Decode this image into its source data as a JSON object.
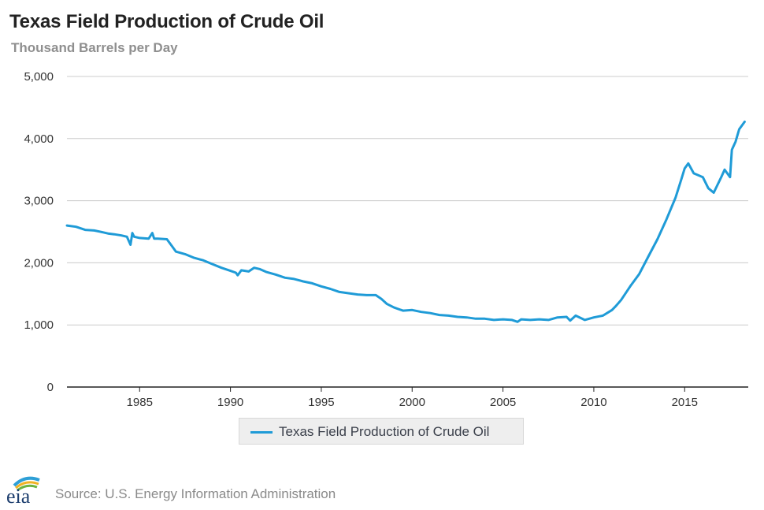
{
  "header": {
    "title": "Texas Field Production of Crude Oil",
    "subtitle": "Thousand Barrels per Day"
  },
  "footer": {
    "source": "Source: U.S. Energy Information Administration",
    "logo_text": "eia"
  },
  "colors": {
    "series": "#1f9bd7",
    "grid": "#cccccc",
    "axis": "#222222"
  },
  "chart_data": {
    "type": "line",
    "title": "Texas Field Production of Crude Oil",
    "subtitle": "Thousand Barrels per Day",
    "xlabel": "",
    "ylabel": "",
    "xlim": [
      1981,
      2018.5
    ],
    "ylim": [
      0,
      5000
    ],
    "x_ticks": [
      1985,
      1990,
      1995,
      2000,
      2005,
      2010,
      2015
    ],
    "x_tick_labels": [
      "1985",
      "1990",
      "1995",
      "2000",
      "2005",
      "2010",
      "2015"
    ],
    "y_ticks": [
      0,
      1000,
      2000,
      3000,
      4000,
      5000
    ],
    "y_tick_labels": [
      "0",
      "1,000",
      "2,000",
      "3,000",
      "4,000",
      "5,000"
    ],
    "grid": "horizontal",
    "legend": "bottom-center",
    "series": [
      {
        "name": "Texas Field Production of Crude Oil",
        "x": [
          1981.0,
          1981.5,
          1982.0,
          1982.5,
          1983.0,
          1983.3,
          1983.6,
          1984.0,
          1984.3,
          1984.5,
          1984.6,
          1984.7,
          1985.0,
          1985.5,
          1985.7,
          1985.8,
          1986.0,
          1986.5,
          1986.8,
          1987.0,
          1987.5,
          1988.0,
          1988.5,
          1989.0,
          1989.5,
          1990.0,
          1990.3,
          1990.4,
          1990.6,
          1991.0,
          1991.3,
          1991.6,
          1992.0,
          1992.5,
          1993.0,
          1993.5,
          1994.0,
          1994.5,
          1995.0,
          1995.5,
          1996.0,
          1996.5,
          1997.0,
          1997.5,
          1998.0,
          1998.3,
          1998.6,
          1999.0,
          1999.5,
          2000.0,
          2000.5,
          2001.0,
          2001.5,
          2002.0,
          2002.5,
          2003.0,
          2003.5,
          2004.0,
          2004.5,
          2005.0,
          2005.5,
          2005.8,
          2006.0,
          2006.5,
          2007.0,
          2007.5,
          2008.0,
          2008.5,
          2008.7,
          2009.0,
          2009.5,
          2010.0,
          2010.5,
          2011.0,
          2011.2,
          2011.5,
          2012.0,
          2012.5,
          2013.0,
          2013.5,
          2014.0,
          2014.5,
          2014.8,
          2015.0,
          2015.2,
          2015.5,
          2016.0,
          2016.3,
          2016.6,
          2017.0,
          2017.2,
          2017.5,
          2017.6,
          2017.8,
          2018.0,
          2018.3
        ],
        "values": [
          2600,
          2580,
          2530,
          2520,
          2490,
          2470,
          2460,
          2440,
          2420,
          2290,
          2480,
          2420,
          2400,
          2390,
          2480,
          2390,
          2390,
          2380,
          2260,
          2180,
          2140,
          2080,
          2040,
          1980,
          1920,
          1870,
          1840,
          1800,
          1880,
          1860,
          1920,
          1900,
          1850,
          1810,
          1760,
          1740,
          1700,
          1670,
          1620,
          1580,
          1530,
          1510,
          1490,
          1480,
          1480,
          1420,
          1340,
          1280,
          1230,
          1240,
          1210,
          1190,
          1160,
          1150,
          1130,
          1120,
          1100,
          1100,
          1080,
          1090,
          1080,
          1050,
          1090,
          1080,
          1090,
          1080,
          1120,
          1130,
          1070,
          1150,
          1080,
          1120,
          1150,
          1240,
          1300,
          1400,
          1620,
          1820,
          2100,
          2380,
          2700,
          3050,
          3330,
          3520,
          3600,
          3440,
          3380,
          3200,
          3130,
          3370,
          3500,
          3380,
          3820,
          3950,
          4150,
          4270
        ]
      }
    ]
  }
}
